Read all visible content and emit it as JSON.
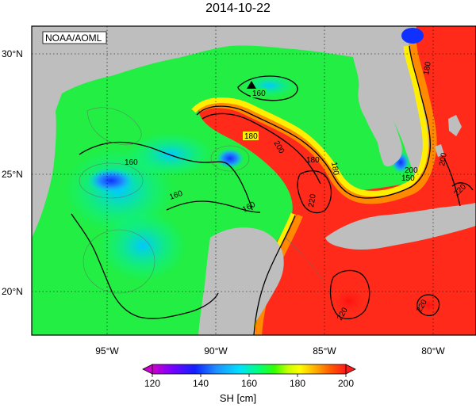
{
  "title": "2014-10-22",
  "credit": "NOAA/AOML",
  "lat_labels": [
    {
      "text": "30°N",
      "value": 30
    },
    {
      "text": "25°N",
      "value": 25
    },
    {
      "text": "20°N",
      "value": 20
    }
  ],
  "lon_labels": [
    {
      "text": "95°W",
      "value": -95
    },
    {
      "text": "90°W",
      "value": -90
    },
    {
      "text": "85°W",
      "value": -85
    },
    {
      "text": "80°W",
      "value": -80
    }
  ],
  "contour_labels": [
    "160",
    "180",
    "200",
    "160",
    "160",
    "160",
    "180",
    "180",
    "180",
    "200",
    "220",
    "220",
    "150",
    "200",
    "220",
    "220"
  ],
  "colorbar": {
    "ticks": [
      "120",
      "140",
      "160",
      "180",
      "200"
    ],
    "unit_label": "SH [cm]",
    "colors": [
      "#cc00cc",
      "#7a00ff",
      "#1020ff",
      "#1f8fff",
      "#00e0ff",
      "#00ff7a",
      "#33ff00",
      "#c6ff00",
      "#ffff00",
      "#ffb000",
      "#ff5a00",
      "#ff1a1a"
    ]
  },
  "colors": {
    "land": "#bebebe",
    "water_low": "#1a7fff",
    "water_mid": "#22ee44",
    "water_high": "#ff2a1a"
  },
  "marker": "triangle"
}
